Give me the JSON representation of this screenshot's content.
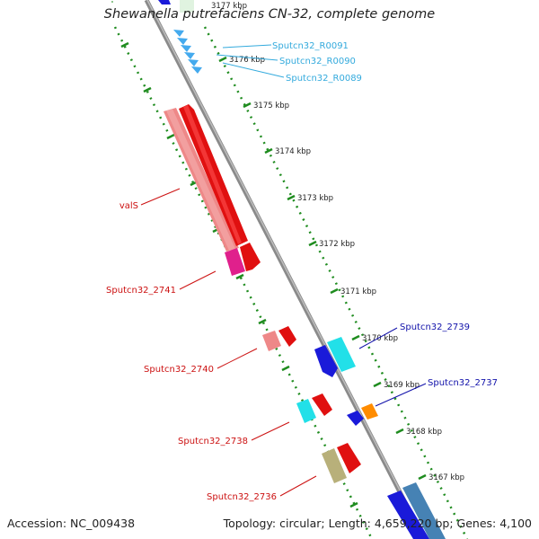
{
  "title": "Shewanella putrefaciens CN-32, complete genome",
  "accession": "Accession: NC_009438",
  "summary": "Topology: circular; Length: 4,659,220 bp; Genes: 4,100",
  "colors": {
    "backbone": "#8a8a8a",
    "ruler": "#1f8c1f",
    "forward_label": "#cc1111",
    "reverse_label": "#1111aa",
    "rna_label": "#33aadd"
  },
  "ticks": [
    "3177 kbp",
    "3176 kbp",
    "3175 kbp",
    "3174 kbp",
    "3173 kbp",
    "3172 kbp",
    "3171 kbp",
    "3170 kbp",
    "3169 kbp",
    "3168 kbp",
    "3167 kbp"
  ],
  "gene_labels": {
    "rna": [
      "Sputcn32_R0091",
      "Sputcn32_R0090",
      "Sputcn32_R0089"
    ],
    "forward": [
      "valS",
      "Sputcn32_2741",
      "Sputcn32_2740",
      "Sputcn32_2738",
      "Sputcn32_2736"
    ],
    "reverse": [
      "Sputcn32_2739",
      "Sputcn32_2737"
    ]
  }
}
